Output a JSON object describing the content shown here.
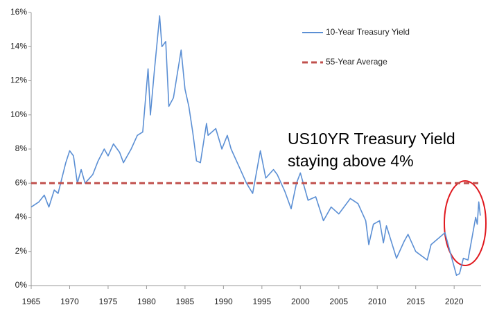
{
  "chart_data": {
    "type": "line",
    "annotation": [
      "US10YR Treasury Yield",
      "staying above 4%"
    ],
    "xlim": [
      1965,
      2023.5
    ],
    "xticks": [
      1965,
      1970,
      1975,
      1980,
      1985,
      1990,
      1995,
      2000,
      2005,
      2010,
      2015,
      2020
    ],
    "ylim": [
      0,
      16
    ],
    "yticks": [
      {
        "value": 0,
        "label": "0%"
      },
      {
        "value": 2,
        "label": "2%"
      },
      {
        "value": 4,
        "label": "4%"
      },
      {
        "value": 6,
        "label": "6%"
      },
      {
        "value": 8,
        "label": "8%"
      },
      {
        "value": 10,
        "label": "10%"
      },
      {
        "value": 12,
        "label": "12%"
      },
      {
        "value": 14,
        "label": "14%"
      },
      {
        "value": 16,
        "label": "16%"
      }
    ],
    "grid": false,
    "legend": "top-right",
    "series": [
      {
        "name": "10-Year Treasury Yield",
        "color": "#5b8fd4",
        "style": "solid",
        "x": [
          1965,
          1966,
          1966.7,
          1967.3,
          1968,
          1968.5,
          1969.5,
          1970,
          1970.5,
          1971,
          1971.5,
          1972,
          1973,
          1973.7,
          1974.5,
          1975,
          1975.7,
          1976.5,
          1977,
          1978,
          1978.8,
          1979.5,
          1980.2,
          1980.5,
          1981,
          1981.7,
          1982,
          1982.5,
          1982.9,
          1983.5,
          1984.5,
          1985,
          1985.5,
          1986,
          1986.5,
          1987,
          1987.8,
          1988,
          1989,
          1989.8,
          1990.5,
          1991,
          1992,
          1993,
          1993.8,
          1994.8,
          1995.5,
          1996.5,
          1997,
          1998,
          1998.8,
          1999.5,
          2000,
          2001,
          2002,
          2003,
          2004,
          2005,
          2006.5,
          2007.5,
          2008.5,
          2008.9,
          2009.5,
          2010.3,
          2010.8,
          2011.2,
          2012.5,
          2013.5,
          2014,
          2015,
          2016.5,
          2017,
          2018.8,
          2019.7,
          2020.3,
          2020.7,
          2021.2,
          2021.8,
          2022.2,
          2022.8,
          2023.0,
          2023.2,
          2023.4
        ],
        "values": [
          4.6,
          4.9,
          5.3,
          4.6,
          5.6,
          5.4,
          7.2,
          7.9,
          7.6,
          6.0,
          6.8,
          6.0,
          6.5,
          7.3,
          8.0,
          7.6,
          8.3,
          7.8,
          7.2,
          8.0,
          8.8,
          9.0,
          12.7,
          10.0,
          12.5,
          15.8,
          14.0,
          14.3,
          10.5,
          11.0,
          13.8,
          11.5,
          10.5,
          9.0,
          7.3,
          7.2,
          9.5,
          8.8,
          9.2,
          8.0,
          8.8,
          8.0,
          7.0,
          6.0,
          5.4,
          7.9,
          6.3,
          6.8,
          6.5,
          5.5,
          4.5,
          6.0,
          6.6,
          5.0,
          5.2,
          3.8,
          4.6,
          4.2,
          5.1,
          4.8,
          3.8,
          2.4,
          3.6,
          3.8,
          2.5,
          3.5,
          1.6,
          2.6,
          3.0,
          2.0,
          1.5,
          2.4,
          3.1,
          1.6,
          0.6,
          0.7,
          1.6,
          1.5,
          2.5,
          4.0,
          3.6,
          4.9,
          4.1
        ]
      },
      {
        "name": "55-Year Average",
        "color": "#c0504d",
        "style": "dashed",
        "x": [
          1965,
          2023.3
        ],
        "values": [
          6,
          6
        ]
      }
    ]
  }
}
